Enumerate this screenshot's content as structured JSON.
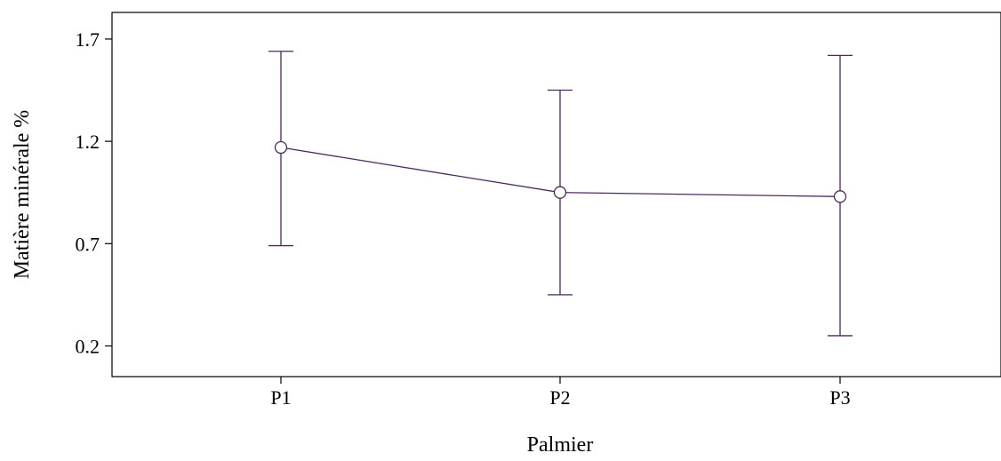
{
  "chart_data": {
    "type": "line",
    "title": "",
    "xlabel": "Palmier",
    "ylabel": "Matière minérale  %",
    "categories": [
      "P1",
      "P2",
      "P3"
    ],
    "y_ticks": [
      "0.2",
      "0.7",
      "1.2",
      "1.7"
    ],
    "ylim": [
      0.05,
      1.83
    ],
    "series": [
      {
        "values": [
          1.17,
          0.95,
          0.93
        ],
        "err_low": [
          0.69,
          0.45,
          0.25
        ],
        "err_high": [
          1.64,
          1.45,
          1.62
        ]
      }
    ],
    "grid": false,
    "color": "#4b2a5c"
  }
}
